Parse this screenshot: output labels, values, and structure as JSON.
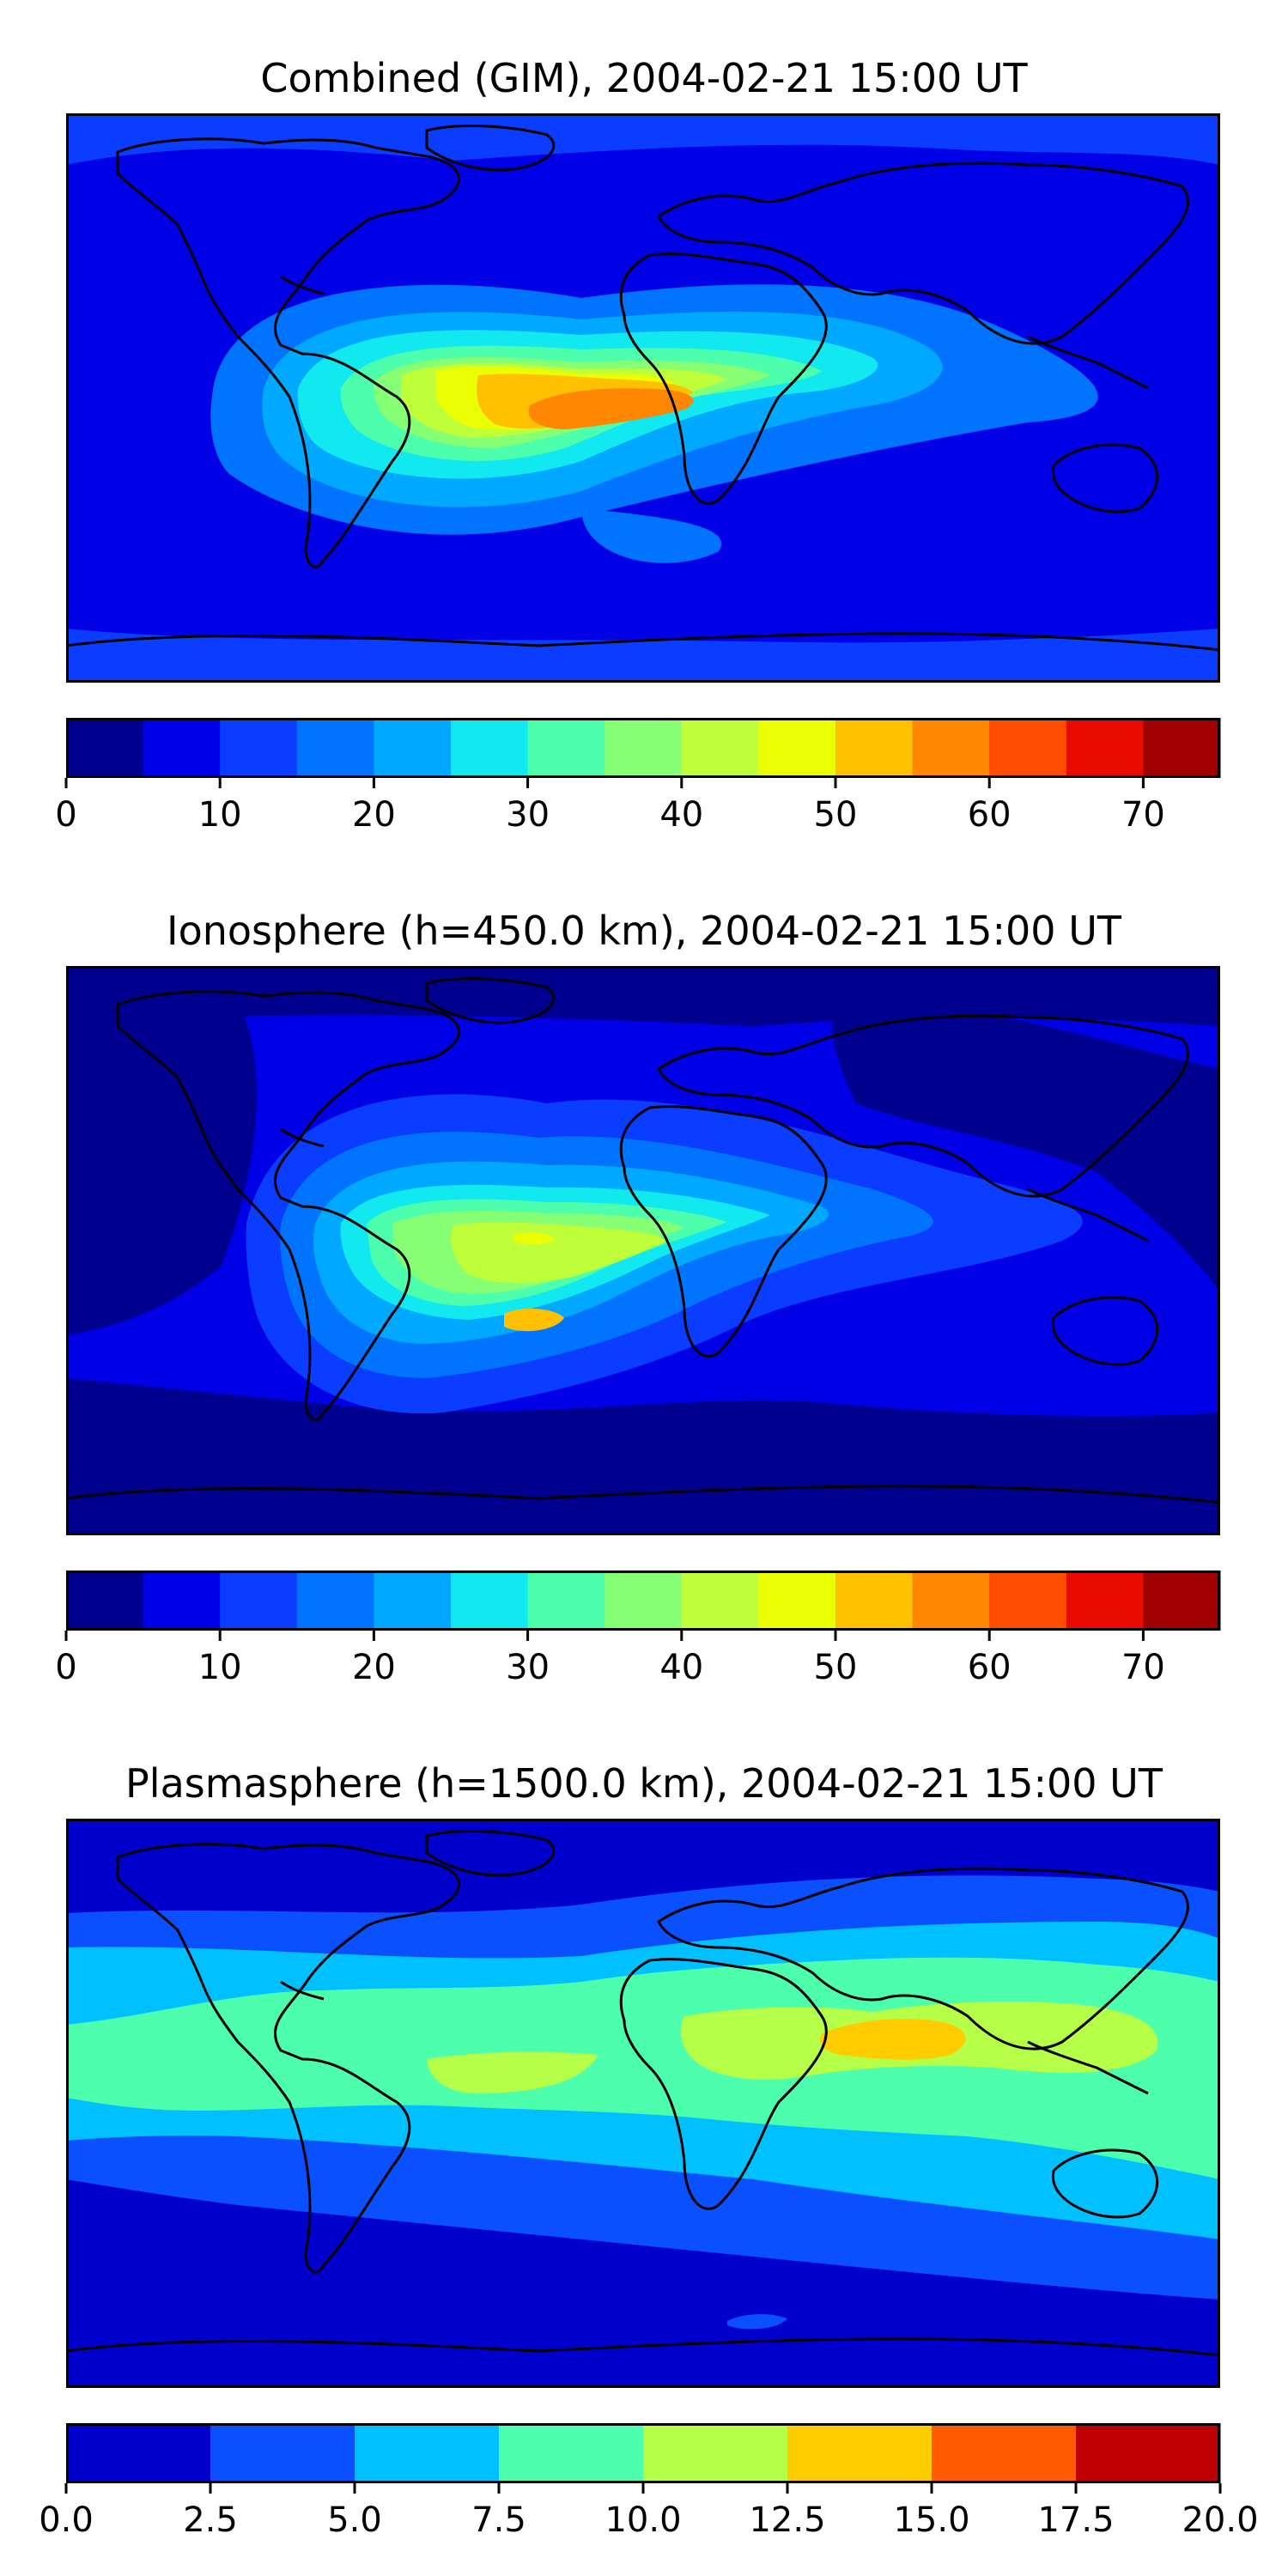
{
  "panels": [
    {
      "title": "Combined (GIM), 2004-02-21 15:00 UT",
      "colorbar": {
        "colors": [
          "#00008f",
          "#0000e6",
          "#0a3dff",
          "#0073ff",
          "#00a8ff",
          "#11e8ef",
          "#4dffad",
          "#86ff75",
          "#bfff3a",
          "#ebff04",
          "#ffc000",
          "#ff8600",
          "#ff4c00",
          "#e80b00",
          "#a00000"
        ],
        "ticks": [
          "0",
          "10",
          "20",
          "30",
          "40",
          "50",
          "60",
          "70"
        ],
        "range": [
          0,
          75
        ]
      }
    },
    {
      "title": "Ionosphere  (h=450.0 km), 2004-02-21 15:00 UT",
      "colorbar": {
        "colors": [
          "#00008f",
          "#0000e6",
          "#0a3dff",
          "#0073ff",
          "#00a8ff",
          "#11e8ef",
          "#4dffad",
          "#86ff75",
          "#bfff3a",
          "#ebff04",
          "#ffc000",
          "#ff8600",
          "#ff4c00",
          "#e80b00",
          "#a00000"
        ],
        "ticks": [
          "0",
          "10",
          "20",
          "30",
          "40",
          "50",
          "60",
          "70"
        ],
        "range": [
          0,
          75
        ]
      }
    },
    {
      "title": "Plasmasphere (h=1500.0 km), 2004-02-21 15:00 UT",
      "colorbar": {
        "colors": [
          "#0000cd",
          "#0a50ff",
          "#00c0ff",
          "#4dffad",
          "#b6ff48",
          "#ffcc00",
          "#ff5a00",
          "#c00000"
        ],
        "ticks": [
          "0.0",
          "2.5",
          "5.0",
          "7.5",
          "10.0",
          "12.5",
          "15.0",
          "17.5",
          "20.0"
        ],
        "range": [
          0,
          20
        ]
      }
    }
  ]
}
